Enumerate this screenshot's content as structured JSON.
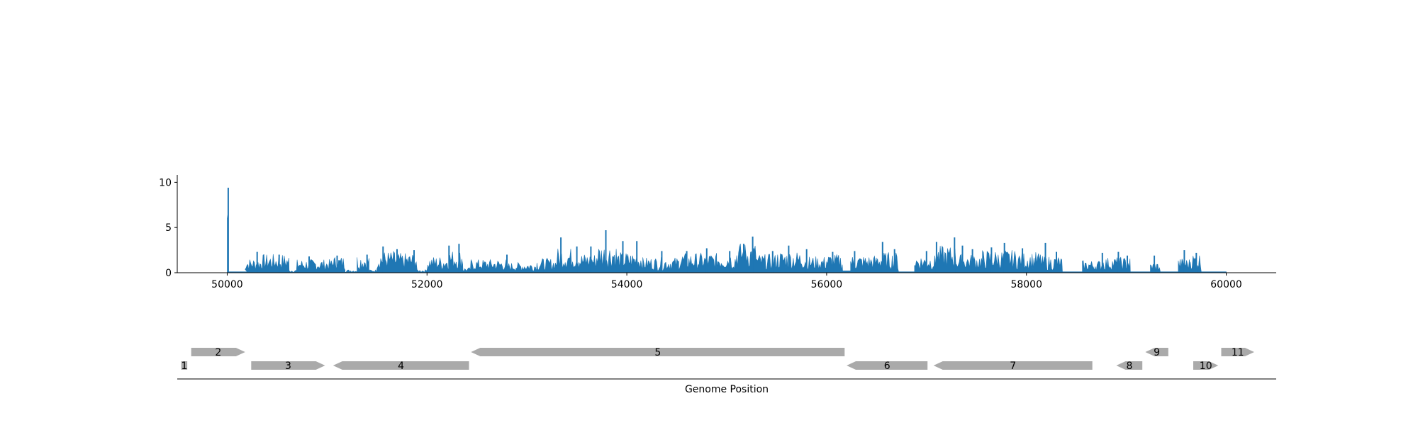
{
  "chart_data": {
    "type": "bar",
    "title": "",
    "coverage": {
      "type": "bar",
      "xlim": [
        49500,
        60500
      ],
      "ylim": [
        0,
        10.5
      ],
      "xticks": [
        50000,
        52000,
        54000,
        56000,
        58000,
        60000
      ],
      "yticks": [
        0,
        5,
        10
      ],
      "color": "#1f77b4",
      "segments": [
        [
          50000,
          50010,
          9.4
        ],
        [
          50010,
          50200,
          0.1
        ],
        [
          50180,
          50340,
          1.4
        ],
        [
          50340,
          50620,
          1.8
        ],
        [
          50620,
          50700,
          0.3
        ],
        [
          50700,
          51060,
          1.3
        ],
        [
          51060,
          51180,
          1.6
        ],
        [
          51180,
          51300,
          0.3
        ],
        [
          51300,
          51420,
          1.8
        ],
        [
          51420,
          51500,
          0.3
        ],
        [
          51500,
          51680,
          2.1
        ],
        [
          51680,
          51900,
          1.9
        ],
        [
          51900,
          52000,
          0.3
        ],
        [
          52000,
          52200,
          1.6
        ],
        [
          52200,
          52360,
          2.2
        ],
        [
          52360,
          52440,
          0.5
        ],
        [
          52440,
          52800,
          1.3
        ],
        [
          52800,
          53100,
          1.0
        ],
        [
          53100,
          53300,
          1.4
        ],
        [
          53300,
          53520,
          2.4
        ],
        [
          53520,
          53700,
          1.9
        ],
        [
          53700,
          53900,
          2.8
        ],
        [
          53900,
          54160,
          2.0
        ],
        [
          54160,
          54520,
          1.5
        ],
        [
          54520,
          54900,
          1.9
        ],
        [
          54900,
          55100,
          2.0
        ],
        [
          55100,
          55300,
          2.9
        ],
        [
          55300,
          55500,
          1.8
        ],
        [
          55500,
          55800,
          2.1
        ],
        [
          55800,
          56000,
          1.6
        ],
        [
          56000,
          56160,
          1.8
        ],
        [
          56160,
          56240,
          0.2
        ],
        [
          56240,
          56500,
          1.7
        ],
        [
          56500,
          56720,
          2.0
        ],
        [
          56720,
          56880,
          0.1
        ],
        [
          56880,
          57100,
          1.7
        ],
        [
          57100,
          57300,
          2.6
        ],
        [
          57300,
          57560,
          1.8
        ],
        [
          57560,
          57900,
          2.2
        ],
        [
          57900,
          58160,
          2.0
        ],
        [
          58160,
          58360,
          1.6
        ],
        [
          58360,
          58560,
          0.1
        ],
        [
          58560,
          58760,
          1.2
        ],
        [
          58760,
          59040,
          1.5
        ],
        [
          59040,
          59240,
          0.1
        ],
        [
          59240,
          59340,
          1.0
        ],
        [
          59340,
          59520,
          0.1
        ],
        [
          59520,
          59640,
          1.4
        ],
        [
          59640,
          59750,
          1.9
        ],
        [
          59750,
          60000,
          0.1
        ]
      ],
      "peaks": [
        [
          50010,
          9.4
        ],
        [
          50300,
          2.3
        ],
        [
          50520,
          2.0
        ],
        [
          50820,
          1.8
        ],
        [
          51100,
          1.9
        ],
        [
          51400,
          2.0
        ],
        [
          51560,
          2.9
        ],
        [
          51700,
          2.6
        ],
        [
          51870,
          2.5
        ],
        [
          52220,
          3.0
        ],
        [
          52320,
          3.2
        ],
        [
          52800,
          2.0
        ],
        [
          53160,
          1.5
        ],
        [
          53340,
          3.9
        ],
        [
          53500,
          2.9
        ],
        [
          53640,
          2.9
        ],
        [
          53790,
          4.7
        ],
        [
          53960,
          3.5
        ],
        [
          54100,
          3.5
        ],
        [
          54350,
          2.4
        ],
        [
          54600,
          2.4
        ],
        [
          54800,
          2.7
        ],
        [
          55030,
          2.4
        ],
        [
          55170,
          3.2
        ],
        [
          55260,
          4.0
        ],
        [
          55460,
          2.4
        ],
        [
          55620,
          3.0
        ],
        [
          55800,
          2.6
        ],
        [
          56060,
          2.3
        ],
        [
          56280,
          2.4
        ],
        [
          56560,
          3.4
        ],
        [
          56680,
          2.6
        ],
        [
          57000,
          2.4
        ],
        [
          57100,
          3.4
        ],
        [
          57280,
          3.9
        ],
        [
          57360,
          3.0
        ],
        [
          57460,
          2.6
        ],
        [
          57650,
          2.8
        ],
        [
          57780,
          3.3
        ],
        [
          57960,
          2.7
        ],
        [
          58190,
          3.3
        ],
        [
          58300,
          2.3
        ],
        [
          58760,
          2.2
        ],
        [
          58920,
          2.3
        ],
        [
          59010,
          1.9
        ],
        [
          59280,
          1.9
        ],
        [
          59580,
          2.5
        ],
        [
          59700,
          2.2
        ]
      ]
    },
    "genes": {
      "xlabel": "Genome Position",
      "color": "#aaaaaa",
      "items": [
        {
          "label": "1",
          "start": 49540,
          "end": 49600,
          "strand": 0,
          "row": 0
        },
        {
          "label": "2",
          "start": 49640,
          "end": 50180,
          "strand": 1,
          "row": 1
        },
        {
          "label": "3",
          "start": 50240,
          "end": 50980,
          "strand": 1,
          "row": 0
        },
        {
          "label": "4",
          "start": 51060,
          "end": 52420,
          "strand": -1,
          "row": 0
        },
        {
          "label": "5",
          "start": 52440,
          "end": 56180,
          "strand": -1,
          "row": 1
        },
        {
          "label": "6",
          "start": 56200,
          "end": 57010,
          "strand": -1,
          "row": 0
        },
        {
          "label": "7",
          "start": 57070,
          "end": 58660,
          "strand": -1,
          "row": 0
        },
        {
          "label": "8",
          "start": 58900,
          "end": 59160,
          "strand": -1,
          "row": 0
        },
        {
          "label": "9",
          "start": 59190,
          "end": 59420,
          "strand": -1,
          "row": 1
        },
        {
          "label": "10",
          "start": 59670,
          "end": 59920,
          "strand": 1,
          "row": 0
        },
        {
          "label": "11",
          "start": 59950,
          "end": 60280,
          "strand": 1,
          "row": 1
        }
      ]
    }
  }
}
